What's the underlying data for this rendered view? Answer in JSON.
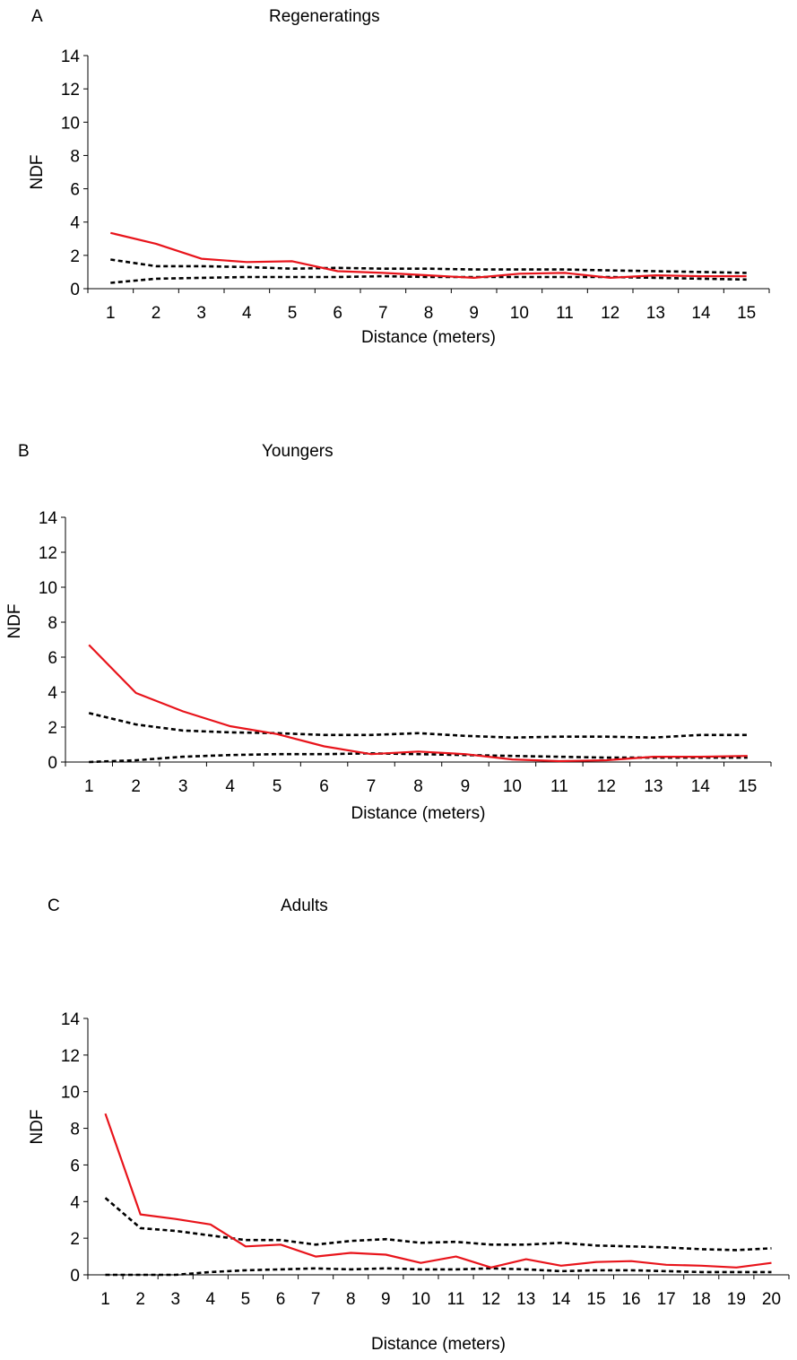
{
  "chart_data": [
    {
      "type": "line",
      "panel_label": "A",
      "title": "Regeneratings",
      "xlabel": "Distance (meters)",
      "ylabel": "NDF",
      "ylim": [
        0,
        14
      ],
      "yticks": [
        0,
        2,
        4,
        6,
        8,
        10,
        12,
        14
      ],
      "x": [
        1,
        2,
        3,
        4,
        5,
        6,
        7,
        8,
        9,
        10,
        11,
        12,
        13,
        14,
        15
      ],
      "series": [
        {
          "style": "solid",
          "color": "#e8141b",
          "values": [
            3.35,
            2.7,
            1.8,
            1.6,
            1.65,
            1.05,
            0.95,
            0.8,
            0.65,
            0.9,
            0.95,
            0.65,
            0.8,
            0.75,
            0.75
          ]
        },
        {
          "style": "dashed",
          "color": "#000000",
          "values": [
            1.75,
            1.35,
            1.35,
            1.3,
            1.2,
            1.25,
            1.2,
            1.2,
            1.15,
            1.15,
            1.15,
            1.1,
            1.05,
            1.0,
            0.95
          ]
        },
        {
          "style": "dashed",
          "color": "#000000",
          "values": [
            0.35,
            0.6,
            0.65,
            0.7,
            0.7,
            0.7,
            0.75,
            0.7,
            0.7,
            0.7,
            0.7,
            0.7,
            0.65,
            0.6,
            0.55
          ]
        }
      ]
    },
    {
      "type": "line",
      "panel_label": "B",
      "title": "Youngers",
      "xlabel": "Distance (meters)",
      "ylabel": "NDF",
      "ylim": [
        0,
        14
      ],
      "yticks": [
        0,
        2,
        4,
        6,
        8,
        10,
        12,
        14
      ],
      "x": [
        1,
        2,
        3,
        4,
        5,
        6,
        7,
        8,
        9,
        10,
        11,
        12,
        13,
        14,
        15
      ],
      "series": [
        {
          "style": "solid",
          "color": "#e8141b",
          "values": [
            6.7,
            3.95,
            2.9,
            2.05,
            1.6,
            0.9,
            0.45,
            0.6,
            0.45,
            0.15,
            0.05,
            0.1,
            0.3,
            0.3,
            0.35
          ]
        },
        {
          "style": "dashed",
          "color": "#000000",
          "values": [
            2.8,
            2.15,
            1.8,
            1.7,
            1.65,
            1.55,
            1.55,
            1.65,
            1.5,
            1.4,
            1.45,
            1.45,
            1.4,
            1.55,
            1.55
          ]
        },
        {
          "style": "dashed",
          "color": "#000000",
          "values": [
            0.0,
            0.1,
            0.3,
            0.4,
            0.45,
            0.45,
            0.5,
            0.45,
            0.4,
            0.35,
            0.3,
            0.25,
            0.25,
            0.25,
            0.25
          ]
        }
      ]
    },
    {
      "type": "line",
      "panel_label": "C",
      "title": "Adults",
      "xlabel": "Distance (meters)",
      "ylabel": "NDF",
      "ylim": [
        0,
        14
      ],
      "yticks": [
        0,
        2,
        4,
        6,
        8,
        10,
        12,
        14
      ],
      "x": [
        1,
        2,
        3,
        4,
        5,
        6,
        7,
        8,
        9,
        10,
        11,
        12,
        13,
        14,
        15,
        16,
        17,
        18,
        19,
        20
      ],
      "series": [
        {
          "style": "solid",
          "color": "#e8141b",
          "values": [
            8.8,
            3.3,
            3.05,
            2.75,
            1.55,
            1.65,
            1.0,
            1.2,
            1.1,
            0.65,
            1.0,
            0.4,
            0.85,
            0.5,
            0.7,
            0.75,
            0.55,
            0.5,
            0.4,
            0.65
          ]
        },
        {
          "style": "dashed",
          "color": "#000000",
          "values": [
            4.2,
            2.55,
            2.4,
            2.15,
            1.9,
            1.9,
            1.65,
            1.85,
            1.95,
            1.75,
            1.8,
            1.65,
            1.65,
            1.75,
            1.6,
            1.55,
            1.5,
            1.4,
            1.35,
            1.45
          ]
        },
        {
          "style": "dashed",
          "color": "#000000",
          "values": [
            0.0,
            0.0,
            0.0,
            0.15,
            0.25,
            0.3,
            0.35,
            0.3,
            0.35,
            0.3,
            0.3,
            0.35,
            0.3,
            0.2,
            0.25,
            0.25,
            0.2,
            0.15,
            0.15,
            0.15
          ]
        }
      ]
    }
  ]
}
